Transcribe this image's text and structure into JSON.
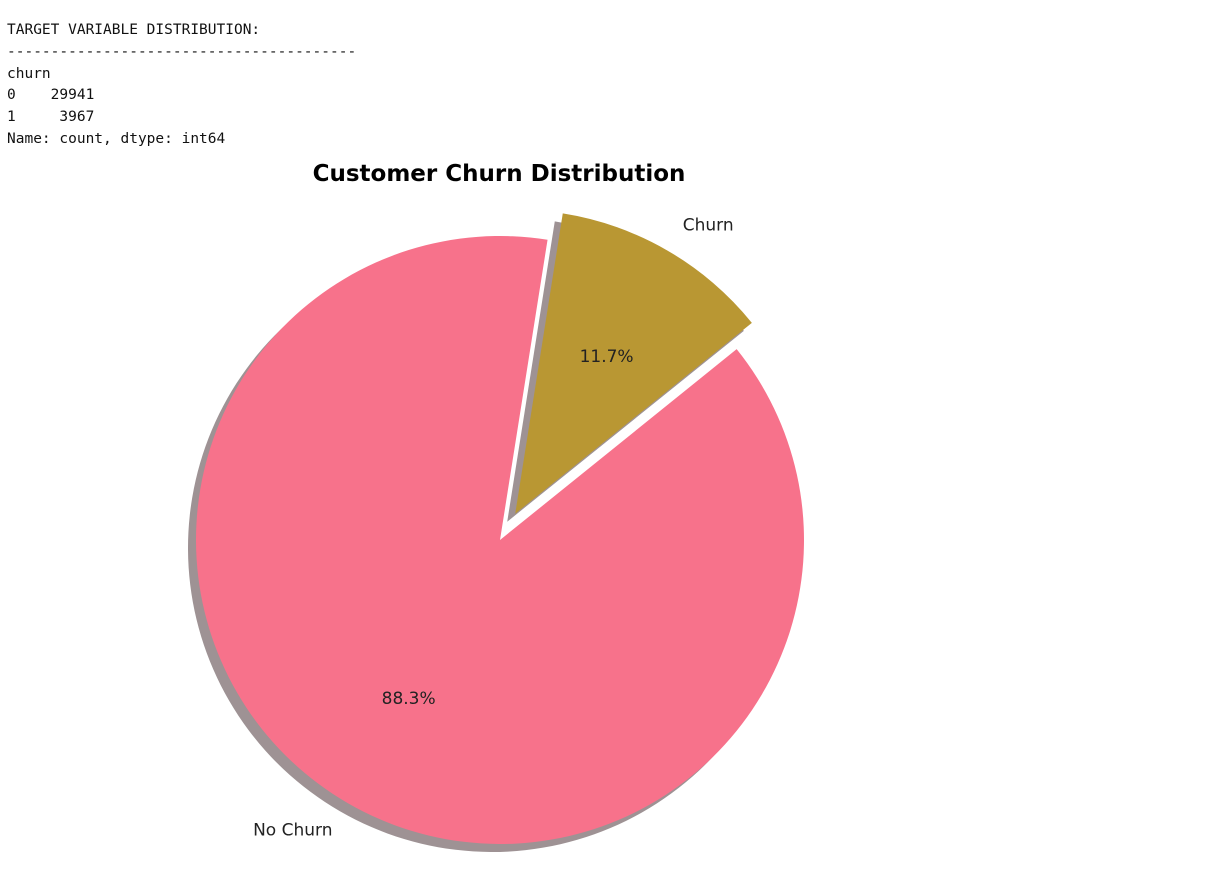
{
  "console": {
    "heading": "TARGET VARIABLE DISTRIBUTION:",
    "separator": "----------------------------------------",
    "index_name": "churn",
    "rows": [
      {
        "index": "0",
        "value": "29941"
      },
      {
        "index": "1",
        "value": "3967"
      }
    ],
    "footer": "Name: count, dtype: int64"
  },
  "chart_data": {
    "type": "pie",
    "title": "Customer Churn Distribution",
    "labels": [
      "No Churn",
      "Churn"
    ],
    "values": [
      29941,
      3967
    ],
    "percent_labels": [
      "88.3%",
      "11.7%"
    ],
    "colors": [
      "#f7728b",
      "#b99733"
    ],
    "explode": [
      0,
      0.1
    ],
    "shadow": true,
    "shadow_color": "#9e9294",
    "start_angle_deg": 81,
    "direction": "counterclockwise"
  }
}
